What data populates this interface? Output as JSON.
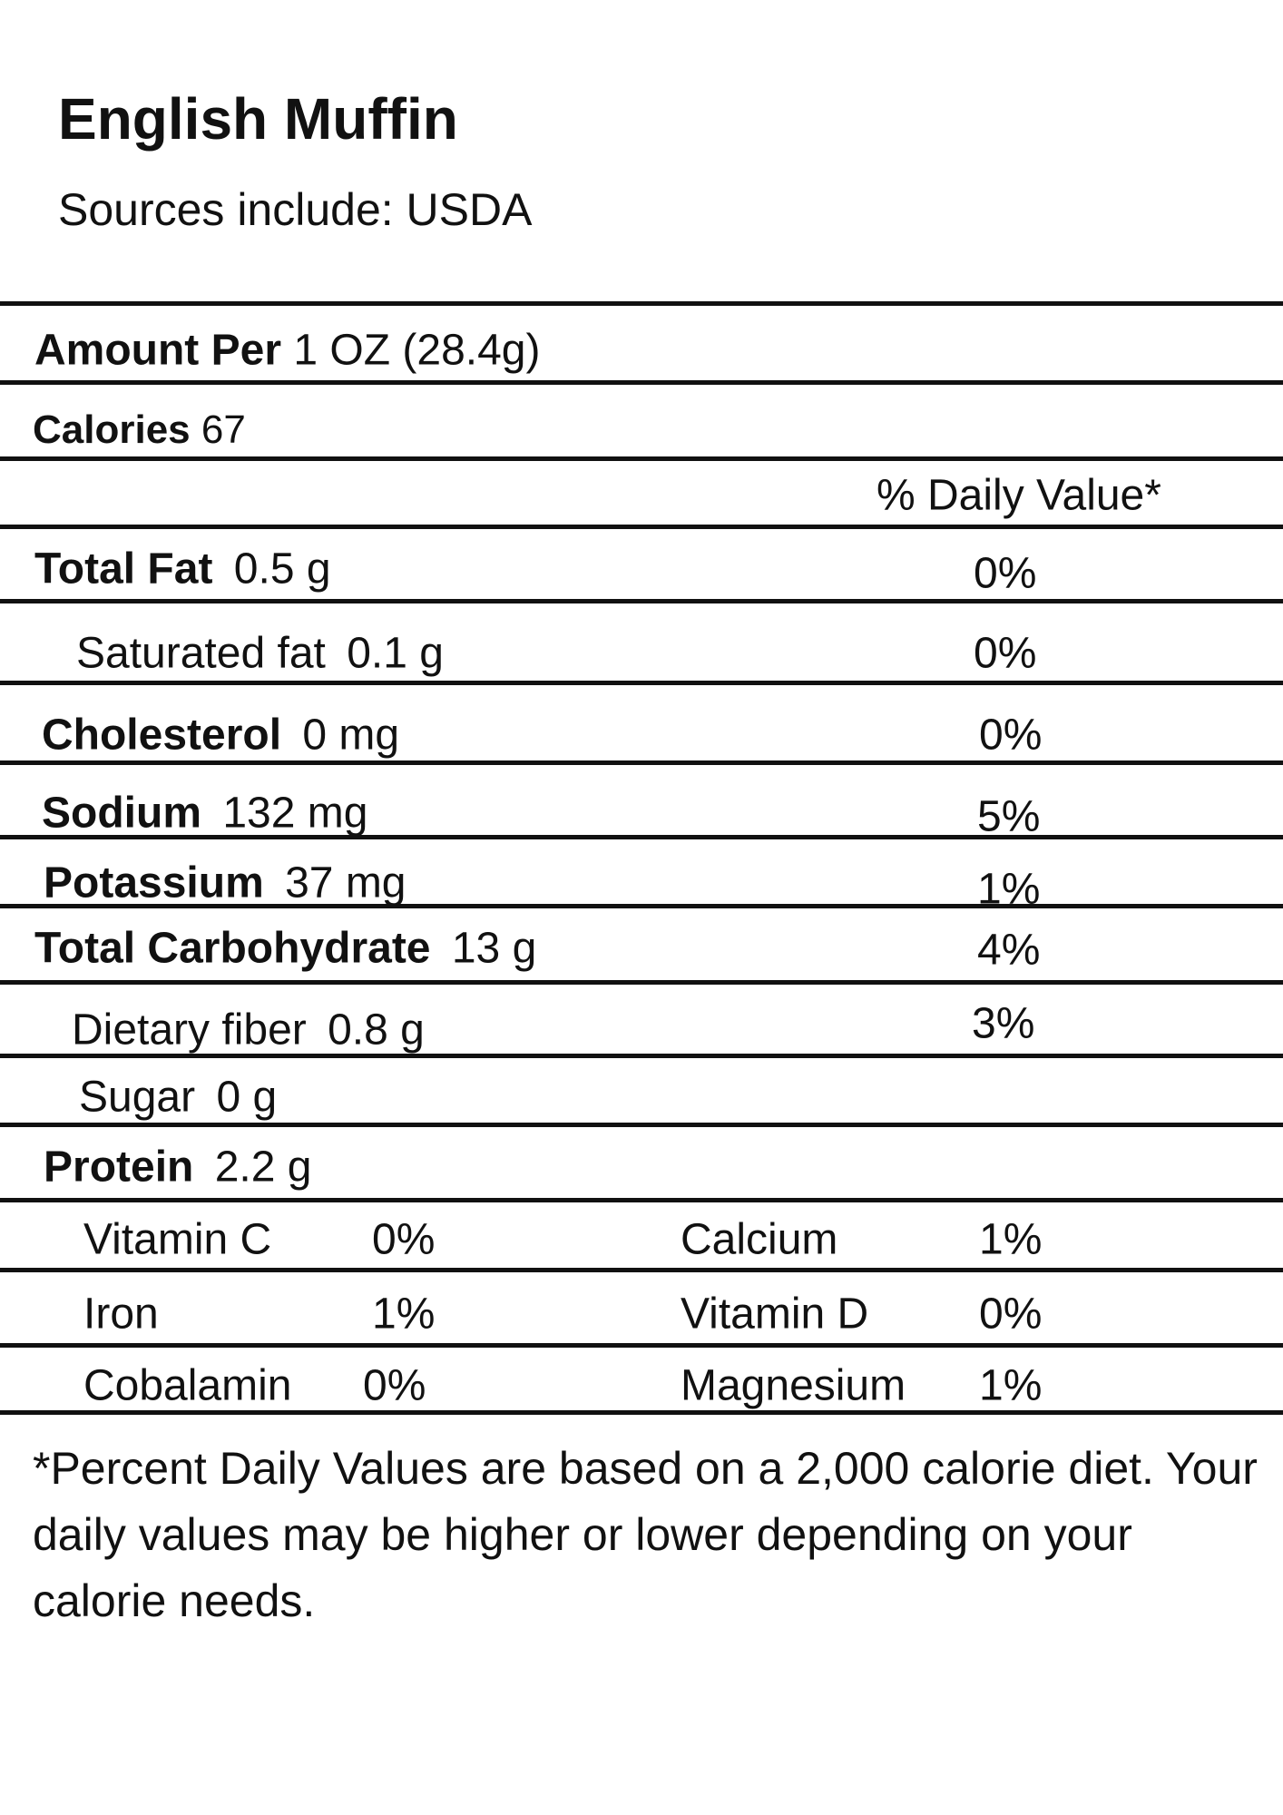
{
  "header": {
    "title": "English Muffin",
    "subtitle": "Sources include: USDA"
  },
  "serving": {
    "label": "Amount Per",
    "value": "1 OZ (28.4g)"
  },
  "calories": {
    "label": "Calories",
    "value": "67"
  },
  "daily_value_header": "% Daily Value*",
  "nutrients": [
    {
      "label": "Total Fat",
      "amount": "0.5 g",
      "dv": "0%"
    },
    {
      "label": "Saturated fat",
      "amount": "0.1 g",
      "dv": "0%"
    },
    {
      "label": "Cholesterol",
      "amount": "0 mg",
      "dv": "0%"
    },
    {
      "label": "Sodium",
      "amount": "132 mg",
      "dv": "5%"
    },
    {
      "label": "Potassium",
      "amount": "37 mg",
      "dv": "1%"
    },
    {
      "label": "Total Carbohydrate",
      "amount": "13 g",
      "dv": "4%"
    },
    {
      "label": "Dietary fiber",
      "amount": "0.8 g",
      "dv": "3%"
    },
    {
      "label": "Sugar",
      "amount": "0 g"
    },
    {
      "label": "Protein",
      "amount": "2.2 g"
    }
  ],
  "vitamins": [
    [
      {
        "name": "Vitamin C",
        "dv": "0%"
      },
      {
        "name": "Calcium",
        "dv": "1%"
      }
    ],
    [
      {
        "name": "Iron",
        "dv": "1%"
      },
      {
        "name": "Vitamin D",
        "dv": "0%"
      }
    ],
    [
      {
        "name": "Cobalamin",
        "dv": "0%"
      },
      {
        "name": "Magnesium",
        "dv": "1%"
      }
    ]
  ],
  "footnote": "*Percent Daily Values are based on a 2,000 calorie diet. Your daily values may be higher or lower depending on your calorie needs."
}
